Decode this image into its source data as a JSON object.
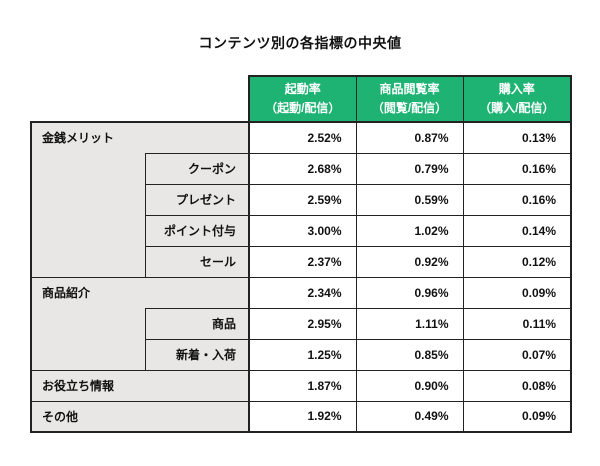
{
  "chart_data": {
    "type": "table",
    "title": "コンテンツ別の各指標の中央値",
    "columns": [
      {
        "line1": "起動率",
        "line2": "（起動/配信）"
      },
      {
        "line1": "商品閲覧率",
        "line2": "（閲覧/配信）"
      },
      {
        "line1": "購入率",
        "line2": "（購入/配信）"
      }
    ],
    "rows": [
      {
        "kind": "category-with-children",
        "label": "金銭メリット",
        "values": [
          "2.52%",
          "0.87%",
          "0.13%"
        ]
      },
      {
        "kind": "sub",
        "label": "クーポン",
        "values": [
          "2.68%",
          "0.79%",
          "0.16%"
        ]
      },
      {
        "kind": "sub",
        "label": "プレゼント",
        "values": [
          "2.59%",
          "0.59%",
          "0.16%"
        ]
      },
      {
        "kind": "sub",
        "label": "ポイント付与",
        "values": [
          "3.00%",
          "1.02%",
          "0.14%"
        ]
      },
      {
        "kind": "sub",
        "label": "セール",
        "values": [
          "2.37%",
          "0.92%",
          "0.12%"
        ]
      },
      {
        "kind": "category-with-children",
        "label": "商品紹介",
        "values": [
          "2.34%",
          "0.96%",
          "0.09%"
        ]
      },
      {
        "kind": "sub",
        "label": "商品",
        "values": [
          "2.95%",
          "1.11%",
          "0.11%"
        ]
      },
      {
        "kind": "sub",
        "label": "新着・入荷",
        "values": [
          "1.25%",
          "0.85%",
          "0.07%"
        ]
      },
      {
        "kind": "category",
        "label": "お役立ち情報",
        "values": [
          "1.87%",
          "0.90%",
          "0.08%"
        ]
      },
      {
        "kind": "category",
        "label": "その他",
        "values": [
          "1.92%",
          "0.49%",
          "0.09%"
        ]
      }
    ]
  },
  "colors": {
    "header_bg": "#1eb273",
    "header_text": "#ffffff",
    "label_bg": "#e8e7e5",
    "value_bg": "#ffffff",
    "border": "#222222",
    "text": "#111111"
  }
}
